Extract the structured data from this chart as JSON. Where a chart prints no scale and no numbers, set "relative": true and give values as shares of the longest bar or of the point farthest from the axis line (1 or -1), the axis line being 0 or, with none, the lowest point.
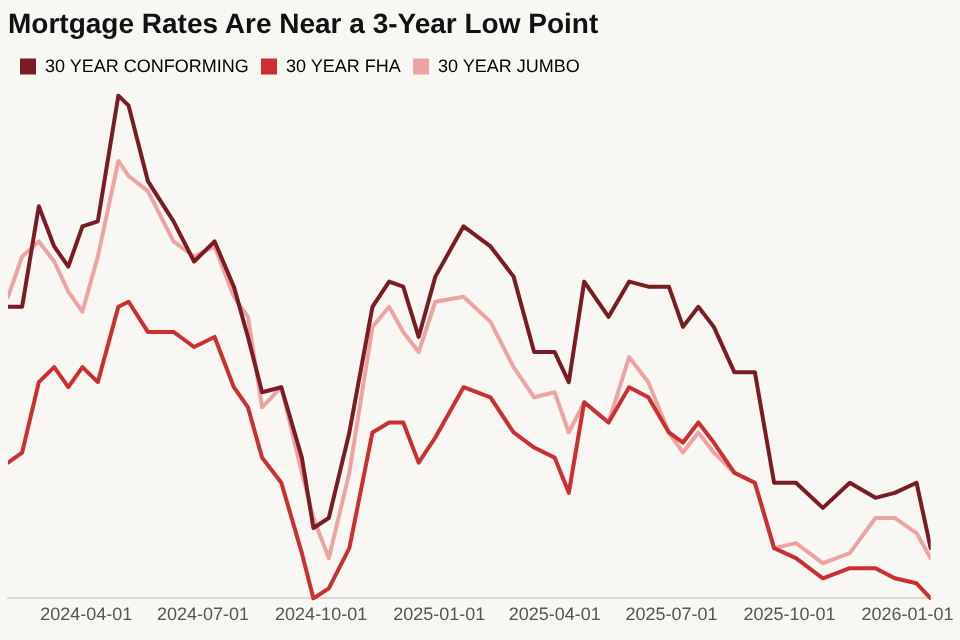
{
  "chart_data": {
    "type": "line",
    "title": "Mortgage Rates Are Near a 3-Year Low Point",
    "relative": true,
    "legend": "top left",
    "grid": false,
    "marker": "none",
    "line_style": "solid",
    "x": [
      "2024-01-31",
      "2024-02-11",
      "2024-02-24",
      "2024-03-07",
      "2024-03-18",
      "2024-03-29",
      "2024-04-10",
      "2024-04-26",
      "2024-05-04",
      "2024-05-19",
      "2024-06-08",
      "2024-06-24",
      "2024-07-10",
      "2024-07-25",
      "2024-08-05",
      "2024-08-16",
      "2024-08-31",
      "2024-09-16",
      "2024-09-25",
      "2024-10-07",
      "2024-10-23",
      "2024-11-10",
      "2024-11-23",
      "2024-12-04",
      "2024-12-16",
      "2024-12-29",
      "2025-01-20",
      "2025-02-10",
      "2025-02-28",
      "2025-03-16",
      "2025-04-01",
      "2025-04-12",
      "2025-04-24",
      "2025-05-13",
      "2025-05-29",
      "2025-06-13",
      "2025-06-29",
      "2025-07-10",
      "2025-07-22",
      "2025-08-03",
      "2025-08-19",
      "2025-09-04",
      "2025-09-19",
      "2025-10-06",
      "2025-10-27",
      "2025-11-17",
      "2025-12-07",
      "2025-12-22",
      "2026-01-08",
      "2026-01-19"
    ],
    "xlim": [
      "2024-01-31",
      "2026-01-19"
    ],
    "xticks": [
      "2024-04-01",
      "2024-07-01",
      "2024-10-01",
      "2025-01-01",
      "2025-04-01",
      "2025-07-01",
      "2025-10-01",
      "2026-01-01"
    ],
    "series": [
      {
        "name": "30 YEAR CONFORMING",
        "color": "#7a1c24",
        "values": [
          0.58,
          0.58,
          0.78,
          0.7,
          0.66,
          0.74,
          0.75,
          1.0,
          0.98,
          0.83,
          0.75,
          0.67,
          0.71,
          0.62,
          0.52,
          0.41,
          0.42,
          0.28,
          0.14,
          0.16,
          0.33,
          0.58,
          0.63,
          0.62,
          0.52,
          0.64,
          0.74,
          0.7,
          0.64,
          0.49,
          0.49,
          0.43,
          0.63,
          0.56,
          0.63,
          0.62,
          0.62,
          0.54,
          0.58,
          0.54,
          0.45,
          0.45,
          0.23,
          0.23,
          0.18,
          0.23,
          0.2,
          0.21,
          0.23,
          0.1
        ]
      },
      {
        "name": "30 YEAR FHA",
        "color": "#cc2f30",
        "values": [
          0.27,
          0.29,
          0.43,
          0.46,
          0.42,
          0.46,
          0.43,
          0.58,
          0.59,
          0.53,
          0.53,
          0.5,
          0.52,
          0.42,
          0.38,
          0.28,
          0.23,
          0.09,
          0,
          0.02,
          0.1,
          0.33,
          0.35,
          0.35,
          0.27,
          0.32,
          0.42,
          0.4,
          0.33,
          0.3,
          0.28,
          0.21,
          0.39,
          0.35,
          0.42,
          0.4,
          0.33,
          0.31,
          0.35,
          0.31,
          0.25,
          0.23,
          0.1,
          0.08,
          0.04,
          0.06,
          0.06,
          0.04,
          0.03,
          0
        ]
      },
      {
        "name": "30 YEAR JUMBO",
        "color": "#eea3a3",
        "values": [
          0.6,
          0.68,
          0.71,
          0.67,
          0.61,
          0.57,
          0.68,
          0.87,
          0.84,
          0.81,
          0.71,
          0.68,
          0.7,
          0.6,
          0.56,
          0.38,
          0.42,
          0.25,
          0.16,
          0.08,
          0.25,
          0.54,
          0.58,
          0.53,
          0.49,
          0.59,
          0.6,
          0.55,
          0.46,
          0.4,
          0.41,
          0.33,
          0.39,
          0.35,
          0.48,
          0.43,
          0.33,
          0.29,
          0.33,
          0.29,
          0.25,
          0.23,
          0.1,
          0.11,
          0.07,
          0.09,
          0.16,
          0.16,
          0.13,
          0.08
        ]
      }
    ]
  }
}
